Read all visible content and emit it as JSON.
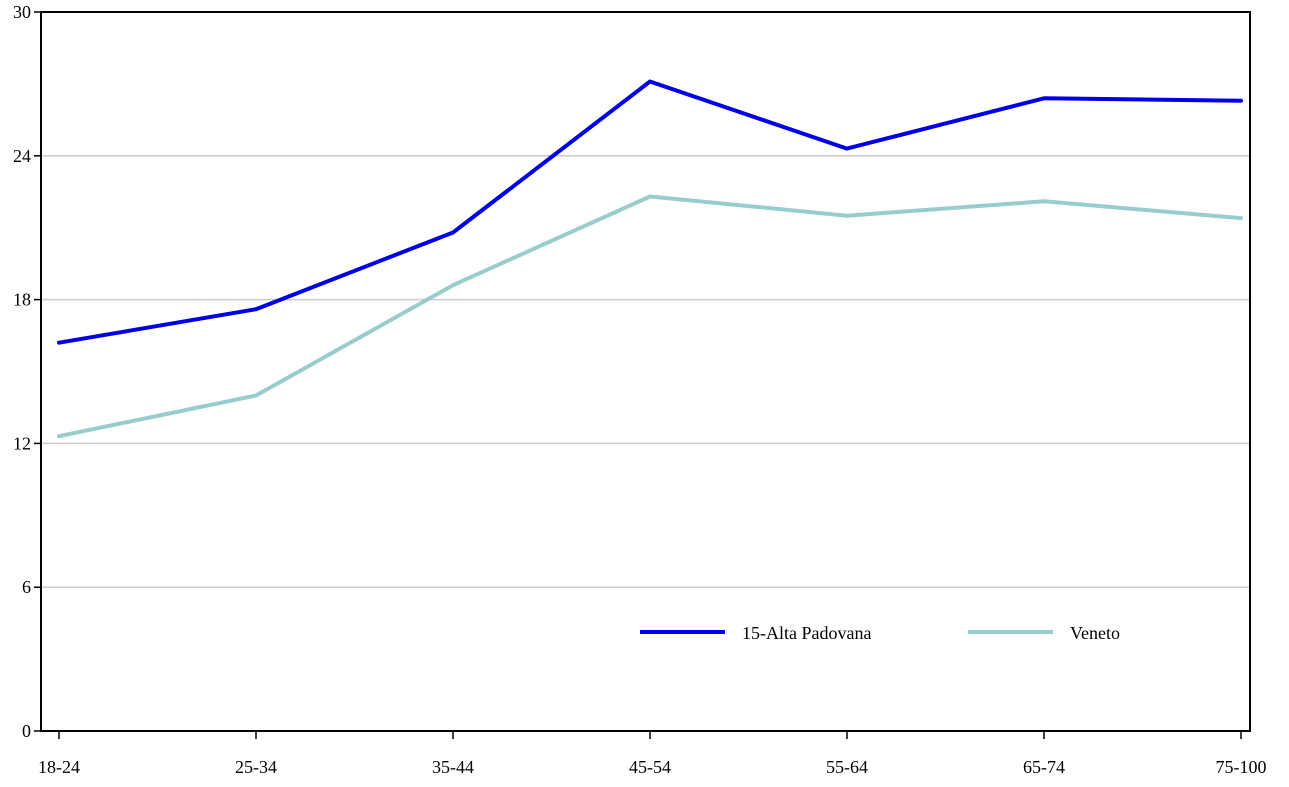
{
  "chart_data": {
    "type": "line",
    "title": "",
    "xlabel": "",
    "ylabel": "",
    "categories": [
      "18-24",
      "25-34",
      "35-44",
      "45-54",
      "55-64",
      "65-74",
      "75-100"
    ],
    "ylim": [
      0,
      30
    ],
    "yticks": [
      "0",
      "6",
      "12",
      "18",
      "24",
      "30"
    ],
    "grid": true,
    "legend_position": "lower-right",
    "series": [
      {
        "name": "15-Alta Padovana",
        "color": "#0000e6",
        "values": [
          16.2,
          17.6,
          20.8,
          27.1,
          24.3,
          26.4,
          26.3
        ]
      },
      {
        "name": "Veneto",
        "color": "#99cccc",
        "values": [
          12.3,
          14.0,
          18.6,
          22.3,
          21.5,
          22.1,
          21.4
        ]
      }
    ]
  }
}
